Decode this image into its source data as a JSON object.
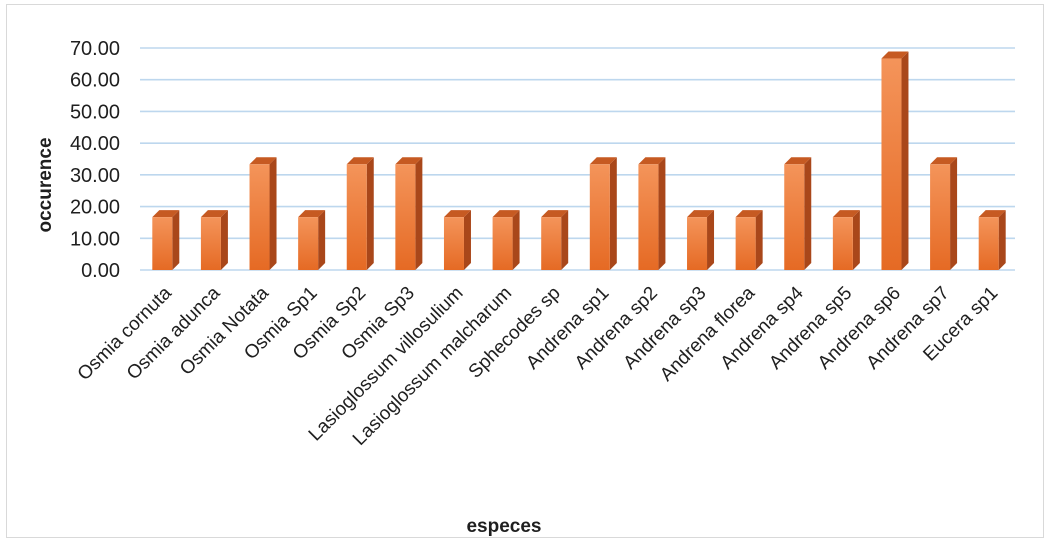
{
  "chart_data": {
    "type": "bar",
    "title": "",
    "xlabel": "especes",
    "ylabel": "occurence",
    "ylim": [
      0,
      70
    ],
    "yticks": [
      "0.00",
      "10.00",
      "20.00",
      "30.00",
      "40.00",
      "50.00",
      "60.00",
      "70.00"
    ],
    "grid": true,
    "bar_color": "#ed7d31",
    "categories": [
      "Osmia cornuta",
      "Osmia adunca",
      "Osmia Notata",
      "Osmia Sp1",
      "Osmia Sp2",
      "Osmia Sp3",
      "Lasioglossum villosulium",
      "Lasioglossum malcharum",
      "Sphecodes sp",
      "Andrena sp1",
      "Andrena sp2",
      "Andrena sp3",
      "Andrena florea",
      "Andrena sp4",
      "Andrena sp5",
      "Andrena sp6",
      "Andrena sp7",
      "Eucera sp1"
    ],
    "values": [
      16.67,
      16.67,
      33.33,
      16.67,
      33.33,
      33.33,
      16.67,
      16.67,
      16.67,
      33.33,
      33.33,
      16.67,
      16.67,
      33.33,
      16.67,
      66.67,
      33.33,
      16.67
    ]
  }
}
